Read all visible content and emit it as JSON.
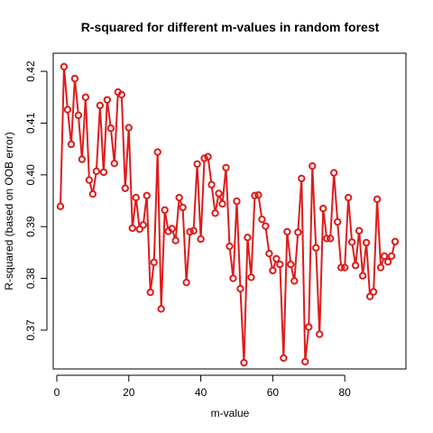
{
  "chart_data": {
    "type": "line",
    "title": "R-squared for different m-values in random forest",
    "xlabel": "m-value",
    "ylabel": "R-squared (based on OOB error)",
    "xlim": [
      -1,
      97
    ],
    "ylim": [
      0.3625,
      0.4235
    ],
    "xticks": [
      0,
      20,
      40,
      60,
      80
    ],
    "xtick_labels": [
      "0",
      "20",
      "40",
      "60",
      "80"
    ],
    "yticks": [
      0.37,
      0.38,
      0.39,
      0.4,
      0.41,
      0.42
    ],
    "ytick_labels": [
      "0.37",
      "0.38",
      "0.39",
      "0.40",
      "0.41",
      "0.42"
    ],
    "grid": false,
    "legend": "none",
    "marker": "open-circle",
    "color": "#dd1c1c",
    "series": [
      {
        "x": [
          1,
          2,
          3,
          4,
          5,
          6,
          7,
          8,
          9,
          10,
          11,
          12,
          13,
          14,
          15,
          16,
          17,
          18,
          19,
          20,
          21,
          22,
          23,
          24,
          25,
          26,
          27,
          28,
          29,
          30,
          31,
          32,
          33,
          34,
          35,
          36,
          37,
          38,
          39,
          40,
          41,
          42,
          43,
          44,
          45,
          46,
          47,
          48,
          49,
          50,
          51,
          52,
          53,
          54,
          55,
          56,
          57,
          58,
          59,
          60,
          61,
          62,
          63,
          64,
          65,
          66,
          67,
          68,
          69,
          70,
          71,
          72,
          73,
          74,
          75,
          76,
          77,
          78,
          79,
          80,
          81,
          82,
          83,
          84,
          85,
          86,
          87,
          88,
          89,
          90,
          91,
          92,
          93,
          94
        ],
        "y": [
          0.3939,
          0.4209,
          0.4126,
          0.4059,
          0.4186,
          0.4115,
          0.403,
          0.415,
          0.399,
          0.3963,
          0.4007,
          0.4134,
          0.4005,
          0.4145,
          0.409,
          0.4022,
          0.416,
          0.4155,
          0.3974,
          0.4091,
          0.3897,
          0.3956,
          0.3895,
          0.3903,
          0.396,
          0.3773,
          0.3831,
          0.4044,
          0.3741,
          0.3932,
          0.3891,
          0.3896,
          0.3873,
          0.3956,
          0.3937,
          0.3792,
          0.389,
          0.3892,
          0.4021,
          0.3876,
          0.4032,
          0.4035,
          0.3981,
          0.3926,
          0.3964,
          0.3944,
          0.4014,
          0.3862,
          0.38,
          0.3949,
          0.378,
          0.3637,
          0.3879,
          0.3802,
          0.396,
          0.3961,
          0.3914,
          0.3901,
          0.3848,
          0.3815,
          0.3838,
          0.3827,
          0.3646,
          0.389,
          0.3827,
          0.3795,
          0.3889,
          0.3993,
          0.3639,
          0.3706,
          0.4017,
          0.3859,
          0.3692,
          0.3935,
          0.3877,
          0.3877,
          0.4004,
          0.3909,
          0.3821,
          0.3821,
          0.3956,
          0.387,
          0.3825,
          0.3892,
          0.3805,
          0.3869,
          0.3765,
          0.3774,
          0.3953,
          0.3821,
          0.3843,
          0.3832,
          0.3843,
          0.3871
        ]
      }
    ]
  }
}
